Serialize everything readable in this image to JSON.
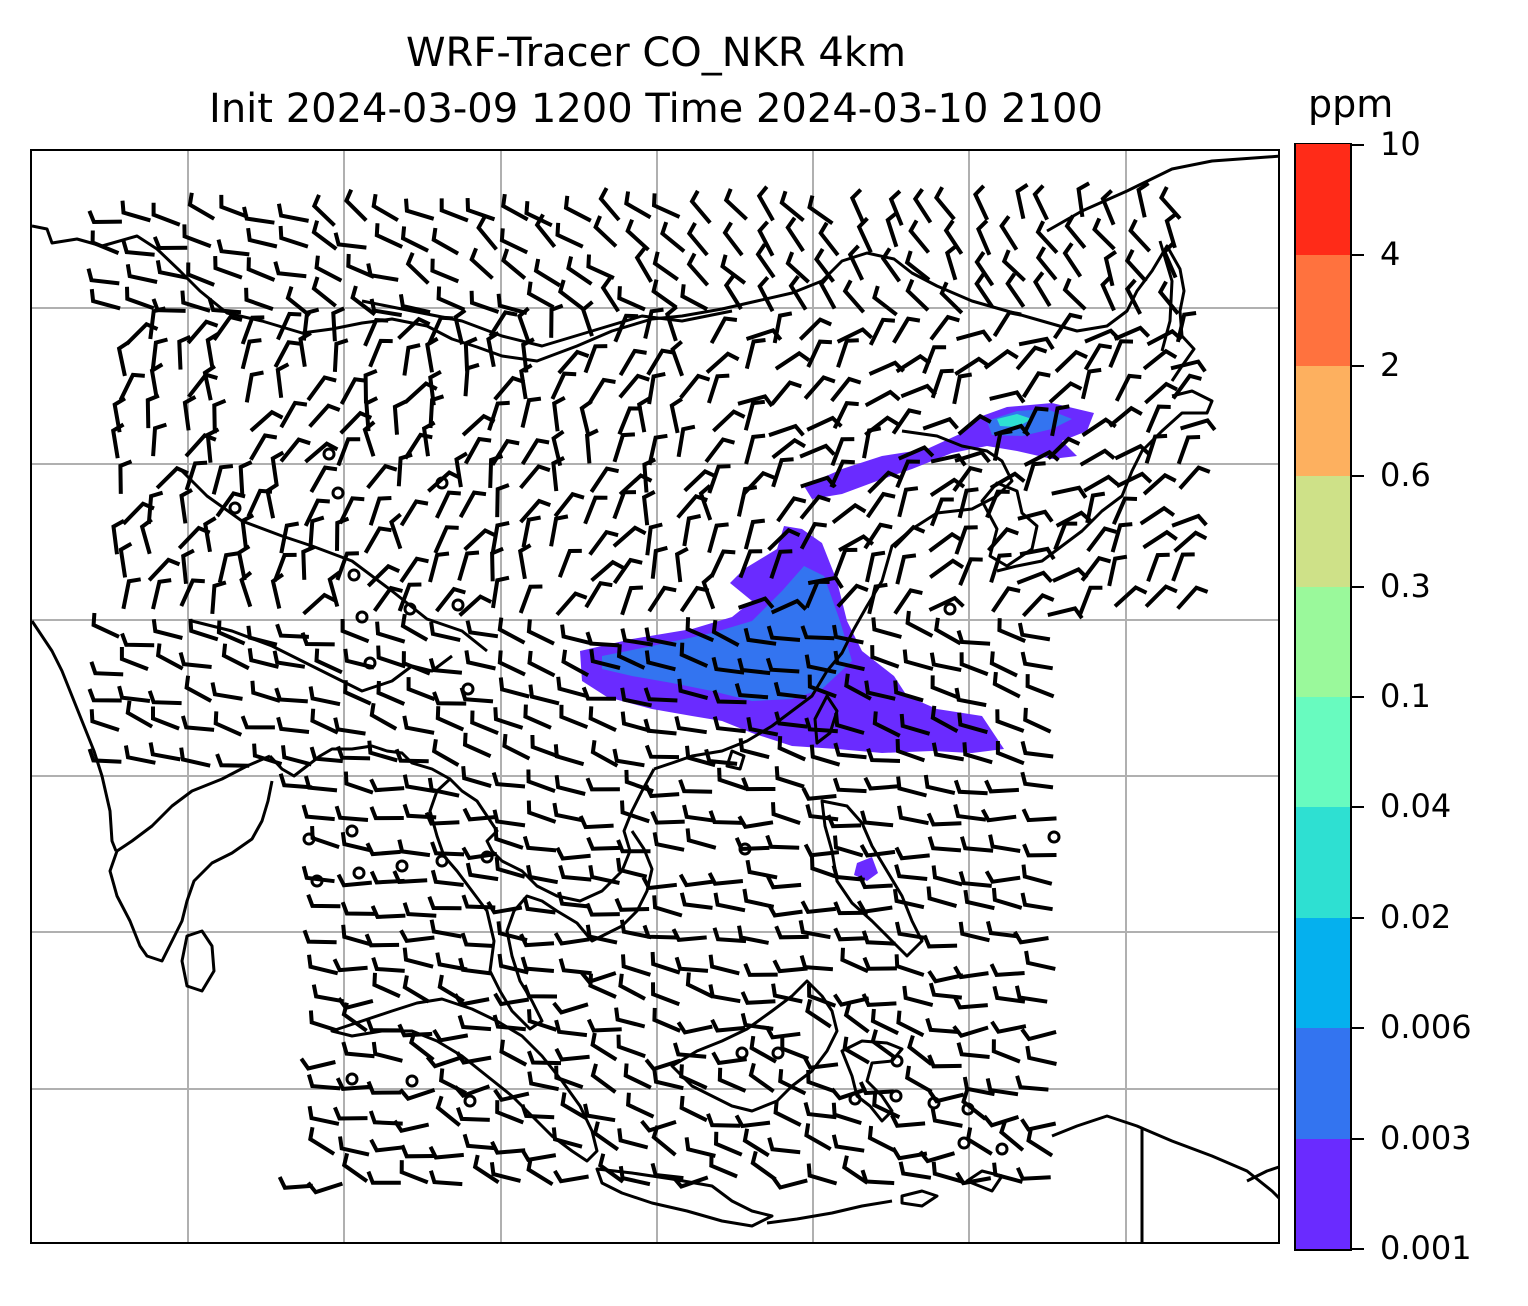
{
  "title": {
    "line1": "WRF-Tracer CO_NKR 4km",
    "line2": "Init 2024-03-09 1200 Time 2024-03-10 2100"
  },
  "colorbar": {
    "unit": "ppm",
    "labels": [
      "10",
      "4",
      "2",
      "0.6",
      "0.3",
      "0.1",
      "0.04",
      "0.02",
      "0.006",
      "0.003",
      "0.001"
    ],
    "colors": [
      "#6a2bff",
      "#3374f0",
      "#05b0ee",
      "#2ee0d2",
      "#68fbbf",
      "#9af99b",
      "#cee188",
      "#fdb05f",
      "#ff723e",
      "#ff2b18"
    ]
  },
  "map": {
    "gridlines": true,
    "tracer_colors": {
      "low": "#6a2bff",
      "mid": "#3374f0",
      "high": "#2ee0d2"
    }
  }
}
